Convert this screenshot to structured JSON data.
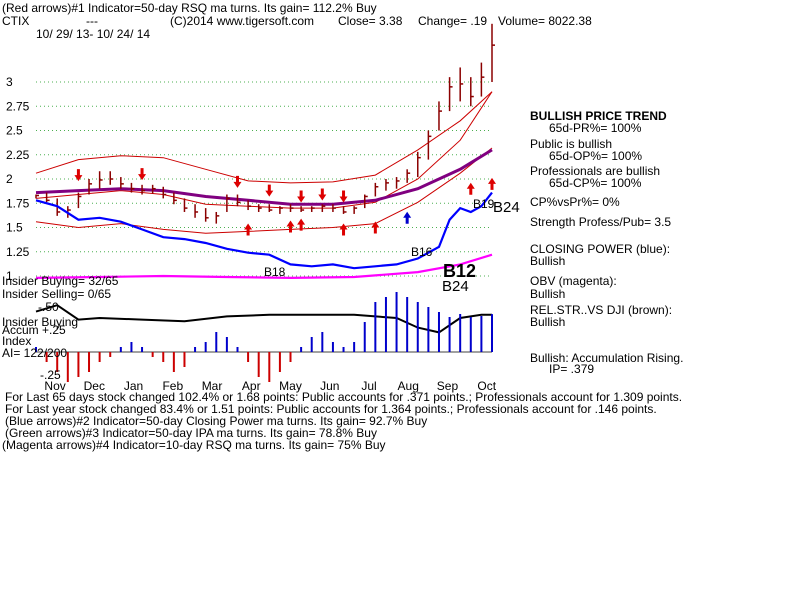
{
  "header": {
    "line1": "(Red arrows)#1 Indicator=50-day RSQ ma turns. Its gain= 112.2% Buy",
    "symbol": "CTIX",
    "dashes": "---",
    "copyright": "(C)2014 www.tigersoft.com",
    "close": "Close=  3.38",
    "change": "Change= .19",
    "volume": "Volume= 8022.38",
    "date_range": "10/ 29/ 13- 10/ 24/ 14"
  },
  "chart_data": {
    "type": "line",
    "price_axis": {
      "ticks": [
        "3",
        "2.75",
        "2.5",
        "2.25",
        "2",
        "1.75",
        "1.5",
        "1.25",
        "1"
      ],
      "ylim": [
        1,
        3.25
      ]
    },
    "x_ticks": [
      "Nov",
      "Dec",
      "Jan",
      "Feb",
      "Mar",
      "Apr",
      "May",
      "Jun",
      "Jul",
      "Aug",
      "Sep",
      "Oct"
    ],
    "price_bars": [
      [
        0.0,
        1.84,
        1.8,
        1.83
      ],
      [
        0.5,
        1.86,
        1.76,
        1.78
      ],
      [
        1.0,
        1.8,
        1.62,
        1.66
      ],
      [
        1.5,
        1.72,
        1.6,
        1.68
      ],
      [
        2.0,
        1.86,
        1.7,
        1.82
      ],
      [
        2.5,
        2.0,
        1.84,
        1.95
      ],
      [
        3.0,
        2.08,
        1.9,
        1.99
      ],
      [
        3.5,
        2.08,
        1.94,
        2.0
      ],
      [
        4.0,
        2.02,
        1.9,
        1.95
      ],
      [
        4.5,
        1.96,
        1.86,
        1.9
      ],
      [
        5.0,
        1.94,
        1.84,
        1.88
      ],
      [
        5.5,
        1.94,
        1.85,
        1.9
      ],
      [
        6.0,
        1.92,
        1.8,
        1.84
      ],
      [
        6.5,
        1.86,
        1.74,
        1.78
      ],
      [
        7.0,
        1.8,
        1.66,
        1.7
      ],
      [
        7.5,
        1.74,
        1.6,
        1.66
      ],
      [
        8.0,
        1.7,
        1.56,
        1.6
      ],
      [
        8.5,
        1.66,
        1.54,
        1.62
      ],
      [
        9.0,
        1.84,
        1.66,
        1.8
      ],
      [
        9.5,
        1.84,
        1.72,
        1.76
      ],
      [
        10.0,
        1.78,
        1.68,
        1.72
      ],
      [
        10.5,
        1.74,
        1.66,
        1.7
      ],
      [
        11.0,
        1.74,
        1.66,
        1.68
      ],
      [
        11.5,
        1.72,
        1.64,
        1.7
      ],
      [
        12.0,
        1.74,
        1.66,
        1.7
      ],
      [
        12.5,
        1.72,
        1.66,
        1.68
      ],
      [
        13.0,
        1.72,
        1.66,
        1.7
      ],
      [
        13.5,
        1.74,
        1.66,
        1.72
      ],
      [
        14.0,
        1.74,
        1.66,
        1.7
      ],
      [
        14.5,
        1.72,
        1.64,
        1.66
      ],
      [
        15.0,
        1.72,
        1.64,
        1.7
      ],
      [
        15.5,
        1.84,
        1.7,
        1.82
      ],
      [
        16.0,
        1.96,
        1.82,
        1.92
      ],
      [
        16.5,
        2.0,
        1.88,
        1.96
      ],
      [
        17.0,
        2.02,
        1.9,
        1.98
      ],
      [
        17.5,
        2.1,
        1.96,
        2.06
      ],
      [
        18.0,
        2.28,
        2.02,
        2.22
      ],
      [
        18.5,
        2.5,
        2.2,
        2.44
      ],
      [
        19.0,
        2.8,
        2.5,
        2.7
      ],
      [
        19.5,
        3.05,
        2.7,
        2.95
      ],
      [
        20.0,
        3.15,
        2.8,
        2.98
      ],
      [
        20.5,
        3.05,
        2.75,
        2.85
      ],
      [
        21.0,
        3.2,
        2.85,
        3.05
      ],
      [
        21.5,
        3.6,
        3.0,
        3.38
      ]
    ],
    "upper_band": [
      [
        0,
        2.06
      ],
      [
        2,
        2.2
      ],
      [
        4,
        2.24
      ],
      [
        6,
        2.22
      ],
      [
        8,
        2.1
      ],
      [
        10,
        1.98
      ],
      [
        12,
        1.96
      ],
      [
        14,
        1.97
      ],
      [
        16,
        2.04
      ],
      [
        18,
        2.3
      ],
      [
        20,
        2.6
      ],
      [
        21.5,
        2.9
      ]
    ],
    "lower_band": [
      [
        0,
        1.56
      ],
      [
        2,
        1.5
      ],
      [
        4,
        1.54
      ],
      [
        6,
        1.48
      ],
      [
        8,
        1.44
      ],
      [
        10,
        1.46
      ],
      [
        12,
        1.48
      ],
      [
        14,
        1.5
      ],
      [
        16,
        1.54
      ],
      [
        18,
        1.76
      ],
      [
        20,
        2.06
      ],
      [
        21.5,
        2.32
      ]
    ],
    "ma_magenta": [
      [
        0,
        1.86
      ],
      [
        2,
        1.88
      ],
      [
        4,
        1.9
      ],
      [
        6,
        1.88
      ],
      [
        8,
        1.82
      ],
      [
        10,
        1.78
      ],
      [
        12,
        1.74
      ],
      [
        14,
        1.74
      ],
      [
        16,
        1.78
      ],
      [
        18,
        1.9
      ],
      [
        20,
        2.1
      ],
      [
        21.5,
        2.3
      ]
    ],
    "ma_red_fast": [
      [
        0,
        1.8
      ],
      [
        2,
        1.84
      ],
      [
        4,
        1.88
      ],
      [
        6,
        1.84
      ],
      [
        8,
        1.74
      ],
      [
        10,
        1.72
      ],
      [
        12,
        1.7
      ],
      [
        14,
        1.7
      ],
      [
        16,
        1.76
      ],
      [
        18,
        2.0
      ],
      [
        20,
        2.4
      ],
      [
        21.5,
        2.9
      ]
    ],
    "closing_power": [
      [
        0,
        1.78
      ],
      [
        1,
        1.72
      ],
      [
        2,
        1.58
      ],
      [
        3,
        1.6
      ],
      [
        4,
        1.56
      ],
      [
        5,
        1.48
      ],
      [
        6,
        1.4
      ],
      [
        7,
        1.38
      ],
      [
        8,
        1.34
      ],
      [
        9,
        1.28
      ],
      [
        10,
        1.24
      ],
      [
        11,
        1.22
      ],
      [
        12,
        1.12
      ],
      [
        13,
        1.1
      ],
      [
        14,
        1.12
      ],
      [
        15,
        1.08
      ],
      [
        16,
        1.1
      ],
      [
        17,
        1.12
      ],
      [
        18,
        1.18
      ],
      [
        19,
        1.3
      ],
      [
        19.5,
        1.58
      ],
      [
        20,
        1.7
      ],
      [
        20.5,
        1.66
      ],
      [
        21,
        1.72
      ],
      [
        21.5,
        1.86
      ]
    ],
    "obv": [
      [
        0,
        0.98
      ],
      [
        3,
        0.99
      ],
      [
        6,
        1.0
      ],
      [
        9,
        0.99
      ],
      [
        12,
        0.98
      ],
      [
        15,
        0.99
      ],
      [
        18,
        1.04
      ],
      [
        20,
        1.12
      ],
      [
        21.5,
        1.22
      ]
    ],
    "rel_strength": [
      [
        0,
        0.62
      ],
      [
        1,
        0.54
      ],
      [
        2,
        0.72
      ],
      [
        3,
        0.7
      ],
      [
        5,
        0.72
      ],
      [
        7,
        0.74
      ],
      [
        9,
        0.68
      ],
      [
        11,
        0.66
      ],
      [
        13,
        0.66
      ],
      [
        15,
        0.66
      ],
      [
        17,
        0.7
      ],
      [
        18,
        0.82
      ],
      [
        19,
        0.88
      ],
      [
        20,
        0.7
      ],
      [
        21,
        0.66
      ],
      [
        21.5,
        0.66
      ]
    ],
    "accumulation": [
      [
        0,
        0.05
      ],
      [
        0.5,
        -0.1
      ],
      [
        1,
        -0.2
      ],
      [
        1.5,
        -0.3
      ],
      [
        2,
        -0.25
      ],
      [
        2.5,
        -0.2
      ],
      [
        3,
        -0.1
      ],
      [
        3.5,
        -0.05
      ],
      [
        4,
        0.05
      ],
      [
        4.5,
        0.1
      ],
      [
        5,
        0.05
      ],
      [
        5.5,
        -0.05
      ],
      [
        6,
        -0.1
      ],
      [
        6.5,
        -0.2
      ],
      [
        7,
        -0.15
      ],
      [
        7.5,
        0.05
      ],
      [
        8,
        0.1
      ],
      [
        8.5,
        0.2
      ],
      [
        9,
        0.15
      ],
      [
        9.5,
        0.05
      ],
      [
        10,
        -0.1
      ],
      [
        10.5,
        -0.25
      ],
      [
        11,
        -0.3
      ],
      [
        11.5,
        -0.2
      ],
      [
        12,
        -0.1
      ],
      [
        12.5,
        0.05
      ],
      [
        13,
        0.15
      ],
      [
        13.5,
        0.2
      ],
      [
        14,
        0.1
      ],
      [
        14.5,
        0.05
      ],
      [
        15,
        0.1
      ],
      [
        15.5,
        0.3
      ],
      [
        16,
        0.5
      ],
      [
        16.5,
        0.55
      ],
      [
        17,
        0.6
      ],
      [
        17.5,
        0.55
      ],
      [
        18,
        0.5
      ],
      [
        18.5,
        0.45
      ],
      [
        19,
        0.4
      ],
      [
        19.5,
        0.35
      ],
      [
        20,
        0.38
      ],
      [
        20.5,
        0.35
      ],
      [
        21,
        0.36
      ],
      [
        21.5,
        0.379
      ]
    ],
    "signals": [
      {
        "x": 2.0,
        "price": 2.04,
        "dir": "down",
        "color": "#dd0000"
      },
      {
        "x": 5.0,
        "price": 2.05,
        "dir": "down",
        "color": "#dd0000"
      },
      {
        "x": 9.5,
        "price": 1.97,
        "dir": "down",
        "color": "#dd0000"
      },
      {
        "x": 11.0,
        "price": 1.88,
        "dir": "down",
        "color": "#dd0000"
      },
      {
        "x": 12.5,
        "price": 1.82,
        "dir": "down",
        "color": "#dd0000"
      },
      {
        "x": 13.5,
        "price": 1.84,
        "dir": "down",
        "color": "#dd0000"
      },
      {
        "x": 14.5,
        "price": 1.82,
        "dir": "down",
        "color": "#dd0000"
      },
      {
        "x": 10.0,
        "price": 1.48,
        "dir": "up",
        "color": "#dd0000"
      },
      {
        "x": 12.0,
        "price": 1.51,
        "dir": "up",
        "color": "#dd0000"
      },
      {
        "x": 12.5,
        "price": 1.53,
        "dir": "up",
        "color": "#dd0000"
      },
      {
        "x": 14.5,
        "price": 1.48,
        "dir": "up",
        "color": "#dd0000"
      },
      {
        "x": 16.0,
        "price": 1.5,
        "dir": "up",
        "color": "#dd0000"
      },
      {
        "x": 17.5,
        "price": 1.6,
        "dir": "up",
        "color": "#0000cc"
      },
      {
        "x": 20.5,
        "price": 1.9,
        "dir": "up",
        "color": "#dd0000"
      },
      {
        "x": 21.5,
        "price": 1.95,
        "dir": "up",
        "color": "#dd0000"
      }
    ]
  },
  "labels": {
    "b18": "B18",
    "b16": "B16",
    "b19": "B19",
    "b24_right": "B24",
    "b12": "B12",
    "b24_lower": "B24",
    "insider_buying": "Insider Buying= 32/65",
    "insider_selling": "Insider Selling= 0/65",
    "minus_50": "-.50",
    "insider_buying2": "Insider Buying",
    "accum": "Accum",
    "accum_val": "+.25",
    "index": "Index",
    "ai": "AI= 122/200",
    "minus_25": "-.25"
  },
  "right_panel": {
    "trend_title": "BULLISH PRICE TREND",
    "trend_pr": "65d-PR%= 100%",
    "public": "Public is bullish",
    "op": "65d-OP%= 100%",
    "professionals": "Professionals are bullish",
    "cp": "65d-CP%= 100%",
    "cpvspr": "CP%vsPr%=  0%",
    "strength": "Strength Profess/Pub= 3.5",
    "closing_power": "CLOSING POWER (blue):",
    "cp_state": "Bullish",
    "obv": "OBV (magenta):",
    "obv_state": "Bullish",
    "relstr": "REL.STR..VS DJI (brown):",
    "relstr_state": "Bullish",
    "accum_title": "Bullish: Accumulation Rising.",
    "ip": "IP=  .379"
  },
  "footer": {
    "line1": "For Last 65 days stock changed  102.4% or  1.68 points:  Public accounts for  .371 points.;  Professionals account for  1.309 points.",
    "line2": "For Last year stock changed  83.4% or  1.51 points:  Public accounts for  1.364 points.;  Professionals account for  .146 points.",
    "line3": "(Blue arrows)#2 Indicator=50-day Closing Power ma turns. Its gain= 92.7% Buy",
    "line4": "(Green arrows)#3 Indicator=50-day IPA ma turns. Its gain= 78.8% Buy",
    "line5": "(Magenta arrows)#4 Indicator=10-day RSQ ma turns. Its gain= 75% Buy"
  },
  "colors": {
    "grid": "#4caf50",
    "price": "#8b0000",
    "band": "#cc0000",
    "ma": "#800080",
    "closing_power": "#0000ff",
    "obv": "#ff00ff",
    "rel_strength": "#000000",
    "accum_pos": "#0000cc",
    "accum_neg": "#cc0000"
  }
}
